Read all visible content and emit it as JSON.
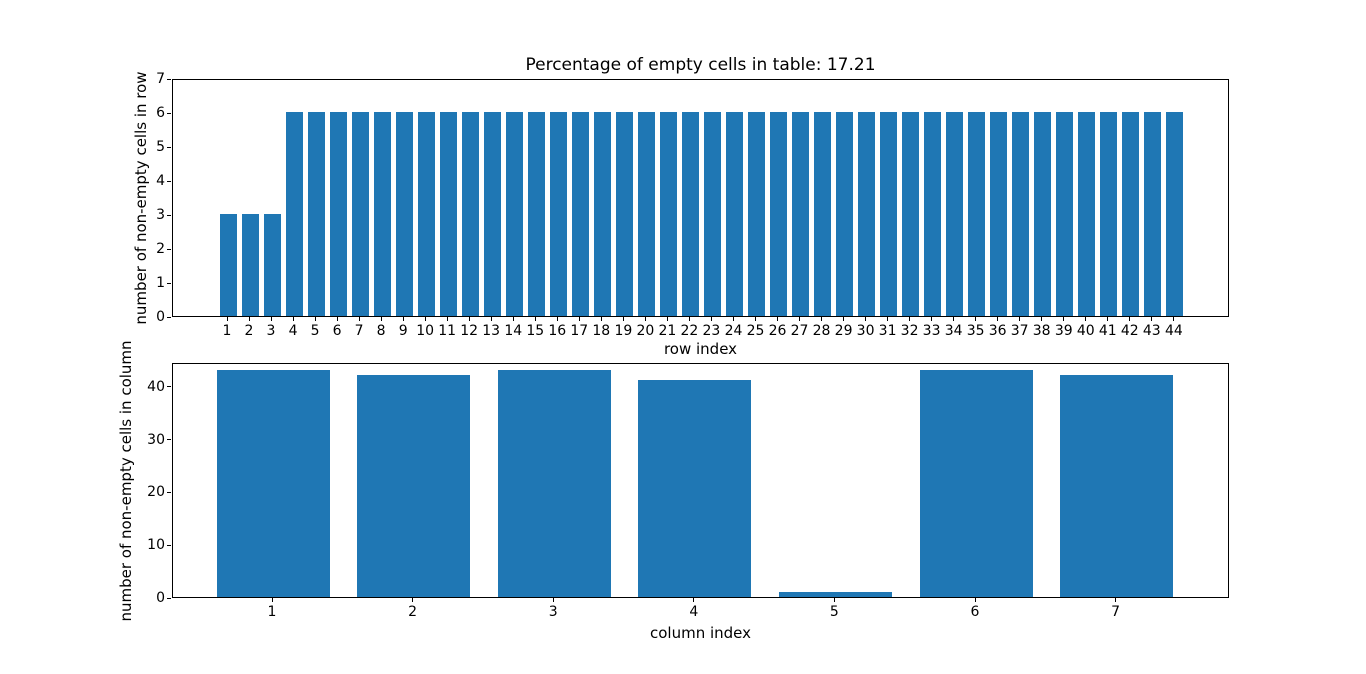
{
  "figure": {
    "background": "#ffffff",
    "bar_color": "#1f77b4",
    "axis_color": "#000000",
    "text_color": "#000000"
  },
  "chart_data": [
    {
      "type": "bar",
      "title": "Percentage of empty cells in table: 17.21",
      "xlabel": "row index",
      "ylabel": "number of non-empty cells in row",
      "categories": [
        "1",
        "2",
        "3",
        "4",
        "5",
        "6",
        "7",
        "8",
        "9",
        "10",
        "11",
        "12",
        "13",
        "14",
        "15",
        "16",
        "17",
        "18",
        "19",
        "20",
        "21",
        "22",
        "23",
        "24",
        "25",
        "26",
        "27",
        "28",
        "29",
        "30",
        "31",
        "32",
        "33",
        "34",
        "35",
        "36",
        "37",
        "38",
        "39",
        "40",
        "41",
        "42",
        "43",
        "44"
      ],
      "values": [
        3,
        3,
        3,
        6,
        6,
        6,
        6,
        6,
        6,
        6,
        6,
        6,
        6,
        6,
        6,
        6,
        6,
        6,
        6,
        6,
        6,
        6,
        6,
        6,
        6,
        6,
        6,
        6,
        6,
        6,
        6,
        6,
        6,
        6,
        6,
        6,
        6,
        6,
        6,
        6,
        6,
        6,
        6,
        6
      ],
      "ylim": [
        0,
        7
      ],
      "yticks": [
        0,
        1,
        2,
        3,
        4,
        5,
        6,
        7
      ],
      "grid": false,
      "legend": null
    },
    {
      "type": "bar",
      "title": "",
      "xlabel": "column index",
      "ylabel": "number of non-empty cells in column",
      "categories": [
        "1",
        "2",
        "3",
        "4",
        "5",
        "6",
        "7"
      ],
      "values": [
        43,
        42,
        43,
        41,
        1,
        43,
        42
      ],
      "ylim": [
        0,
        44.5
      ],
      "yticks": [
        0,
        10,
        20,
        30,
        40
      ],
      "grid": false,
      "legend": null
    }
  ]
}
